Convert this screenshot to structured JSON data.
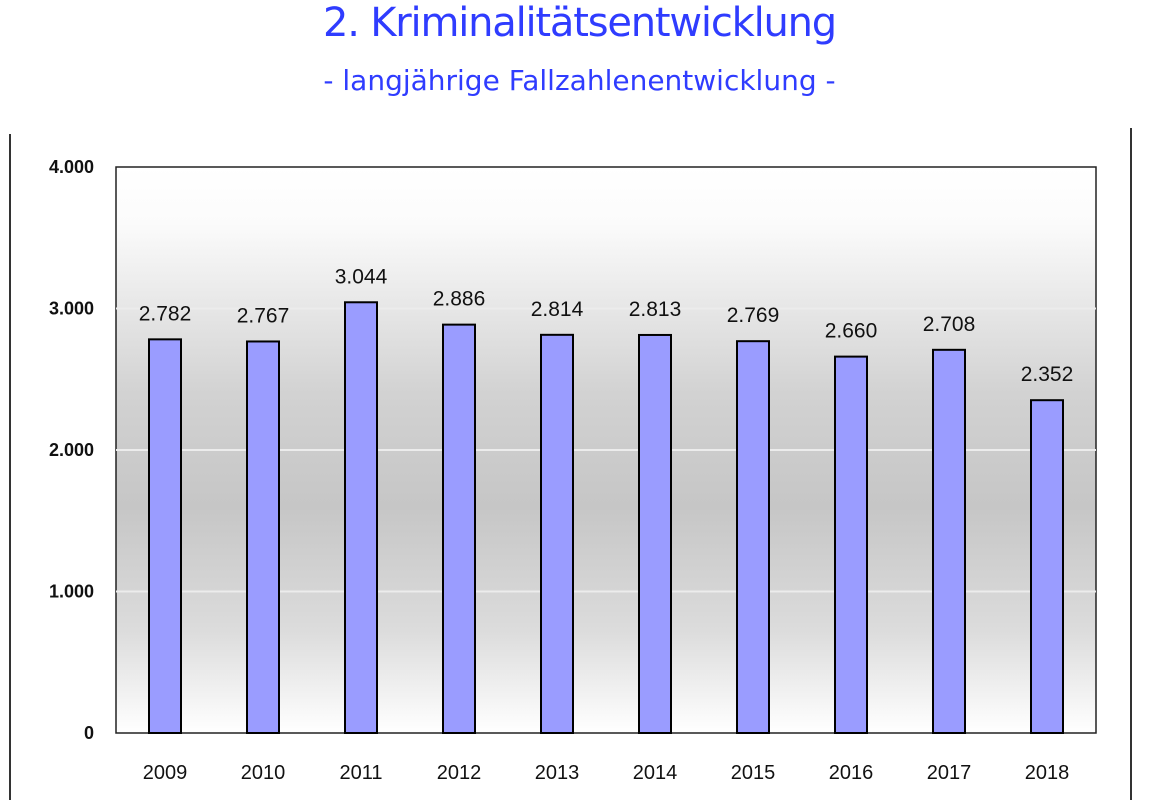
{
  "header": {
    "title": "2. Kriminalitätsentwicklung",
    "subtitle": "- langjährige Fallzahlenentwicklung -"
  },
  "colors": {
    "title": "#2f3cff",
    "bar_fill": "#9a9cff",
    "bar_stroke": "#000000"
  },
  "chart_data": {
    "type": "bar",
    "categories": [
      "2009",
      "2010",
      "2011",
      "2012",
      "2013",
      "2014",
      "2015",
      "2016",
      "2017",
      "2018"
    ],
    "values": [
      2782,
      2767,
      3044,
      2886,
      2814,
      2813,
      2769,
      2660,
      2708,
      2352
    ],
    "value_labels": [
      "2.782",
      "2.767",
      "3.044",
      "2.886",
      "2.814",
      "2.813",
      "2.769",
      "2.660",
      "2.708",
      "2.352"
    ],
    "yticks": [
      0,
      1000,
      2000,
      3000,
      4000
    ],
    "ytick_labels": [
      "0",
      "1.000",
      "2.000",
      "3.000",
      "4.000"
    ],
    "ylim": [
      0,
      4000
    ],
    "grid": true,
    "legend": "none"
  }
}
